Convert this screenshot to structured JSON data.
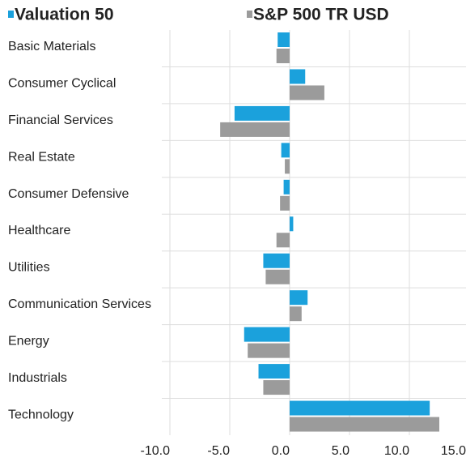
{
  "chart_data": {
    "type": "hbar",
    "categories": [
      "Basic Materials",
      "Consumer Cyclical",
      "Financial Services",
      "Real Estate",
      "Consumer Defensive",
      "Healthcare",
      "Utilities",
      "Communication Services",
      "Energy",
      "Industrials",
      "Technology"
    ],
    "series": [
      {
        "name": "Valuation 50",
        "color": "#1ba1dc",
        "values": [
          -1.0,
          1.3,
          -4.6,
          -0.7,
          -0.5,
          0.3,
          -2.2,
          1.5,
          -3.8,
          -2.6,
          11.7
        ]
      },
      {
        "name": "S&P 500 TR USD",
        "color": "#9b9b9b",
        "values": [
          -1.1,
          2.9,
          -5.8,
          -0.4,
          -0.8,
          -1.1,
          -2.0,
          1.0,
          -3.5,
          -2.2,
          12.5
        ]
      }
    ],
    "xlim": [
      -10,
      15
    ],
    "xticks": [
      {
        "value": -10,
        "label": "-10.0"
      },
      {
        "value": -5,
        "label": "-5.0"
      },
      {
        "value": 0,
        "label": "0.0"
      },
      {
        "value": 5,
        "label": "5.0"
      },
      {
        "value": 10,
        "label": "10.0"
      },
      {
        "value": 15,
        "label": "15.0"
      }
    ],
    "grid": true
  }
}
